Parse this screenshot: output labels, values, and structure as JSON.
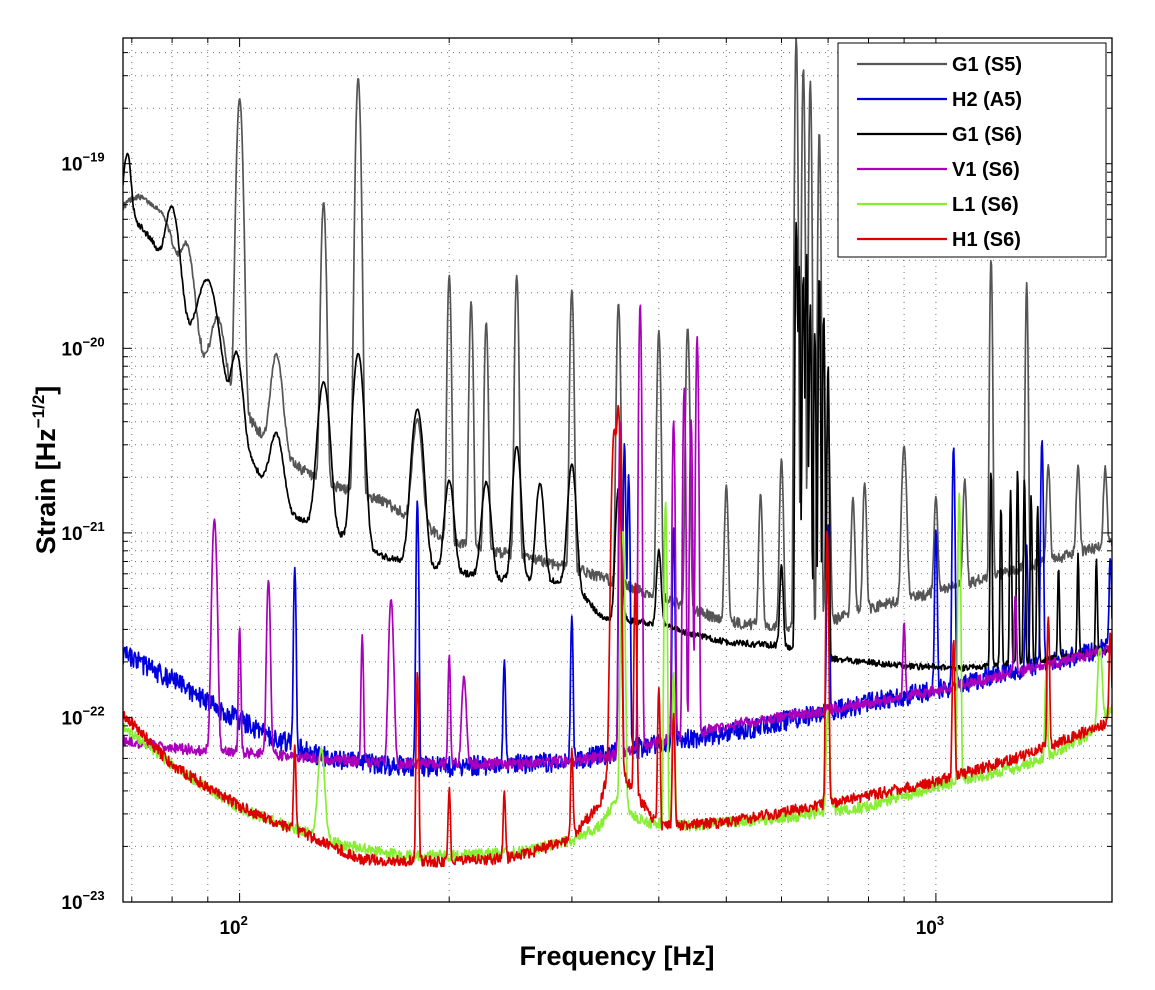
{
  "chart_data": {
    "type": "line",
    "title": "",
    "xlabel": "Frequency [Hz]",
    "ylabel": "Strain [Hz",
    "ylabel_exponent": "−1/2",
    "ylabel_suffix": "]",
    "xscale": "log",
    "yscale": "log",
    "xlim": [
      68,
      1790
    ],
    "ylim": [
      1e-23,
      4.8e-19
    ],
    "grid": true,
    "legend_position": "top-right",
    "x_ticks": [
      {
        "value": 100,
        "base": "10",
        "exp": "2"
      },
      {
        "value": 1000,
        "base": "10",
        "exp": "3"
      }
    ],
    "y_ticks": [
      {
        "value": 1e-23,
        "base": "10",
        "exp": "−23"
      },
      {
        "value": 1e-22,
        "base": "10",
        "exp": "−22"
      },
      {
        "value": 1e-21,
        "base": "10",
        "exp": "−21"
      },
      {
        "value": 1e-20,
        "base": "10",
        "exp": "−20"
      },
      {
        "value": 1e-19,
        "base": "10",
        "exp": "−19"
      }
    ],
    "series": [
      {
        "name": "G1 (S5)",
        "color": "#555555",
        "base": [
          [
            68,
            4.2e-20
          ],
          [
            75,
            2.6e-20
          ],
          [
            85,
            1.2e-20
          ],
          [
            92,
            6.5e-21
          ],
          [
            100,
            5e-21
          ],
          [
            110,
            3e-21
          ],
          [
            130,
            1.9e-21
          ],
          [
            160,
            1.5e-21
          ],
          [
            200,
            9e-22
          ],
          [
            300,
            6.5e-22
          ],
          [
            400,
            4.5e-22
          ],
          [
            500,
            3.3e-22
          ],
          [
            600,
            3.1e-22
          ],
          [
            700,
            3.3e-22
          ],
          [
            800,
            3.9e-22
          ],
          [
            1000,
            4.8e-22
          ],
          [
            1300,
            6.3e-22
          ],
          [
            1790,
            8.8e-22
          ]
        ],
        "peaks": [
          [
            72,
            3.3e-20,
            0.03
          ],
          [
            78,
            2.2e-20,
            0.02
          ],
          [
            84,
            2.2e-20,
            0.012
          ],
          [
            93,
            8.5e-21,
            0.012
          ],
          [
            100,
            2.2e-19,
            0.005
          ],
          [
            113,
            6.5e-21,
            0.01
          ],
          [
            132,
            6e-20,
            0.004
          ],
          [
            148,
            2.9e-19,
            0.004
          ],
          [
            180,
            3e-21,
            0.008
          ],
          [
            200,
            2.4e-20,
            0.003
          ],
          [
            215,
            1.7e-20,
            0.003
          ],
          [
            226,
            1.3e-20,
            0.003
          ],
          [
            250,
            2.4e-20,
            0.003
          ],
          [
            300,
            2e-20,
            0.003
          ],
          [
            350,
            1.7e-20,
            0.003
          ],
          [
            400,
            1.2e-20,
            0.003
          ],
          [
            440,
            1.25e-20,
            0.003
          ],
          [
            500,
            1.5e-21,
            0.003
          ],
          [
            560,
            1.3e-21,
            0.003
          ],
          [
            600,
            2.2e-21,
            0.003
          ],
          [
            630,
            4.8e-19,
            0.002
          ],
          [
            645,
            3.3e-19,
            0.002
          ],
          [
            660,
            2.8e-19,
            0.002
          ],
          [
            680,
            1.5e-19,
            0.002
          ],
          [
            700,
            3.5e-21,
            0.003
          ],
          [
            760,
            1.2e-21,
            0.003
          ],
          [
            790,
            1.5e-21,
            0.003
          ],
          [
            900,
            2.5e-21,
            0.004
          ],
          [
            1000,
            1.1e-21,
            0.003
          ],
          [
            1100,
            1.4e-21,
            0.003
          ],
          [
            1200,
            3e-20,
            0.002
          ],
          [
            1350,
            2.2e-20,
            0.002
          ],
          [
            1450,
            1.6e-21,
            0.003
          ],
          [
            1600,
            1.5e-21,
            0.003
          ],
          [
            1750,
            1.4e-21,
            0.003
          ]
        ]
      },
      {
        "name": "H2 (A5)",
        "color": "#0000dd",
        "base": [
          [
            68,
            2.2e-22
          ],
          [
            80,
            1.6e-22
          ],
          [
            90,
            1.2e-22
          ],
          [
            110,
            8e-23
          ],
          [
            130,
            6.2e-23
          ],
          [
            160,
            5.5e-23
          ],
          [
            200,
            5.4e-23
          ],
          [
            300,
            5.8e-23
          ],
          [
            400,
            7.2e-23
          ],
          [
            500,
            8.2e-23
          ],
          [
            600,
            9.5e-23
          ],
          [
            800,
            1.2e-22
          ],
          [
            1000,
            1.4e-22
          ],
          [
            1300,
            1.8e-22
          ],
          [
            1790,
            2.4e-22
          ]
        ],
        "peaks": [
          [
            120,
            5.8e-22,
            0.002
          ],
          [
            180,
            1.45e-21,
            0.002
          ],
          [
            240,
            1.5e-22,
            0.002
          ],
          [
            300,
            3e-22,
            0.002
          ],
          [
            352,
            2.3e-21,
            0.002
          ],
          [
            357,
            3e-21,
            0.002
          ],
          [
            362,
            2e-21,
            0.002
          ],
          [
            420,
            1e-21,
            0.002
          ],
          [
            700,
            1e-21,
            0.002
          ],
          [
            1000,
            9e-22,
            0.002
          ],
          [
            1060,
            2.8e-21,
            0.002
          ],
          [
            1350,
            6.5e-22,
            0.002
          ],
          [
            1420,
            3e-21,
            0.002
          ],
          [
            1780,
            5e-22,
            0.002
          ]
        ]
      },
      {
        "name": "G1 (S6)",
        "color": "#000000",
        "base": [
          [
            68,
            6e-20
          ],
          [
            75,
            3.8e-20
          ],
          [
            85,
            1.1e-20
          ],
          [
            95,
            4.5e-21
          ],
          [
            105,
            2.3e-21
          ],
          [
            115,
            1.3e-21
          ],
          [
            130,
            1.1e-21
          ],
          [
            160,
            7.5e-22
          ],
          [
            200,
            6.2e-22
          ],
          [
            250,
            5.5e-22
          ],
          [
            300,
            5.5e-22
          ],
          [
            330,
            3.5e-22
          ],
          [
            400,
            3.2e-22
          ],
          [
            450,
            2.8e-22
          ],
          [
            500,
            2.55e-22
          ],
          [
            600,
            2.45e-22
          ],
          [
            700,
            2.1e-22
          ],
          [
            900,
            1.9e-22
          ],
          [
            1100,
            1.85e-22
          ],
          [
            1400,
            2.05e-22
          ],
          [
            1790,
            2.3e-22
          ]
        ],
        "peaks": [
          [
            69,
            5.8e-20,
            0.006
          ],
          [
            80,
            3.8e-20,
            0.012
          ],
          [
            90,
            1.65e-20,
            0.018
          ],
          [
            99,
            6e-21,
            0.01
          ],
          [
            113,
            2e-21,
            0.012
          ],
          [
            132,
            5.5e-21,
            0.01
          ],
          [
            148,
            8.5e-21,
            0.009
          ],
          [
            180,
            4e-21,
            0.01
          ],
          [
            200,
            1.3e-21,
            0.008
          ],
          [
            226,
            1.3e-21,
            0.008
          ],
          [
            250,
            2.4e-21,
            0.007
          ],
          [
            270,
            1.3e-21,
            0.007
          ],
          [
            300,
            1.8e-21,
            0.007
          ],
          [
            350,
            1.4e-21,
            0.005
          ],
          [
            400,
            4.8e-22,
            0.004
          ],
          [
            600,
            4.2e-22,
            0.003
          ],
          [
            630,
            4.8e-20,
            0.0015
          ],
          [
            636,
            2.8e-20,
            0.0015
          ],
          [
            645,
            2.5e-20,
            0.0015
          ],
          [
            652,
            3.2e-20,
            0.0015
          ],
          [
            660,
            1.7e-20,
            0.0015
          ],
          [
            670,
            1.2e-20,
            0.0015
          ],
          [
            680,
            2.5e-20,
            0.0015
          ],
          [
            690,
            1.5e-20,
            0.0015
          ],
          [
            700,
            8e-21,
            0.0015
          ],
          [
            1200,
            2e-21,
            0.0015
          ],
          [
            1240,
            1.2e-21,
            0.0015
          ],
          [
            1280,
            1.5e-21,
            0.0015
          ],
          [
            1310,
            2e-21,
            0.0015
          ],
          [
            1340,
            1.8e-21,
            0.0015
          ],
          [
            1370,
            1.4e-21,
            0.0015
          ],
          [
            1400,
            1.2e-21,
            0.0015
          ],
          [
            1500,
            4.5e-22,
            0.0015
          ],
          [
            1600,
            5.5e-22,
            0.0015
          ],
          [
            1700,
            5e-22,
            0.0015
          ]
        ]
      },
      {
        "name": "V1 (S6)",
        "color": "#aa00bb",
        "base": [
          [
            68,
            7.5e-23
          ],
          [
            80,
            6.8e-23
          ],
          [
            100,
            6.5e-23
          ],
          [
            130,
            6e-23
          ],
          [
            170,
            5.6e-23
          ],
          [
            250,
            5.6e-23
          ],
          [
            300,
            5.8e-23
          ],
          [
            350,
            6.3e-23
          ],
          [
            400,
            7.4e-23
          ],
          [
            500,
            9e-23
          ],
          [
            700,
            1.1e-22
          ],
          [
            1000,
            1.4e-22
          ],
          [
            1300,
            1.75e-22
          ],
          [
            1790,
            2.35e-22
          ]
        ],
        "peaks": [
          [
            92,
            1.12e-21,
            0.004
          ],
          [
            100,
            2.4e-22,
            0.002
          ],
          [
            110,
            4.9e-22,
            0.003
          ],
          [
            150,
            2.2e-22,
            0.002
          ],
          [
            165,
            3.8e-22,
            0.004
          ],
          [
            200,
            1.6e-22,
            0.002
          ],
          [
            210,
            1.1e-22,
            0.004
          ],
          [
            352,
            4e-21,
            0.002
          ],
          [
            376,
            1.75e-20,
            0.002
          ],
          [
            420,
            4e-21,
            0.002
          ],
          [
            435,
            6e-21,
            0.002
          ],
          [
            445,
            4e-21,
            0.002
          ],
          [
            454,
            1.15e-20,
            0.002
          ],
          [
            900,
            2e-22,
            0.002
          ],
          [
            1300,
            3e-22,
            0.002
          ]
        ]
      },
      {
        "name": "L1 (S6)",
        "color": "#88ee33",
        "base": [
          [
            68,
            9e-23
          ],
          [
            80,
            5.5e-23
          ],
          [
            100,
            3.2e-23
          ],
          [
            120,
            2.5e-23
          ],
          [
            140,
            2.05e-23
          ],
          [
            170,
            1.8e-23
          ],
          [
            200,
            1.78e-23
          ],
          [
            250,
            1.85e-23
          ],
          [
            300,
            2.15e-23
          ],
          [
            330,
            2.6e-23
          ],
          [
            345,
            3.5e-23
          ],
          [
            360,
            3.2e-23
          ],
          [
            380,
            2.7e-23
          ],
          [
            450,
            2.6e-23
          ],
          [
            600,
            2.85e-23
          ],
          [
            800,
            3.3e-23
          ],
          [
            1000,
            4.2e-23
          ],
          [
            1300,
            5.3e-23
          ],
          [
            1500,
            6.5e-23
          ],
          [
            1700,
            8.5e-23
          ],
          [
            1790,
            1.15e-22
          ]
        ],
        "peaks": [
          [
            131,
            4.5e-23,
            0.006
          ],
          [
            355,
            1e-21,
            0.003
          ],
          [
            409,
            1.45e-21,
            0.002
          ],
          [
            420,
            1.5e-22,
            0.002
          ],
          [
            700,
            8e-23,
            0.003
          ],
          [
            1080,
            1.6e-21,
            0.002
          ],
          [
            1440,
            1.2e-22,
            0.002
          ],
          [
            1720,
            1.5e-22,
            0.004
          ]
        ]
      },
      {
        "name": "H1 (S6)",
        "color": "#dd0000",
        "base": [
          [
            68,
            1.05e-22
          ],
          [
            80,
            5.5e-23
          ],
          [
            100,
            3.3e-23
          ],
          [
            110,
            2.8e-23
          ],
          [
            125,
            2.3e-23
          ],
          [
            150,
            1.7e-23
          ],
          [
            200,
            1.65e-23
          ],
          [
            250,
            1.75e-23
          ],
          [
            300,
            2.2e-23
          ],
          [
            330,
            3.5e-23
          ],
          [
            345,
            7e-23
          ],
          [
            360,
            4.5e-23
          ],
          [
            400,
            2.55e-23
          ],
          [
            500,
            2.7e-23
          ],
          [
            700,
            3.4e-23
          ],
          [
            1000,
            4.5e-23
          ],
          [
            1300,
            6e-23
          ],
          [
            1790,
            9.5e-23
          ]
        ],
        "peaks": [
          [
            120,
            4.5e-23,
            0.002
          ],
          [
            180,
            1.6e-22,
            0.002
          ],
          [
            200,
            2.5e-23,
            0.002
          ],
          [
            240,
            2.3e-23,
            0.002
          ],
          [
            300,
            4.5e-23,
            0.002
          ],
          [
            345,
            3.5e-21,
            0.004
          ],
          [
            350,
            4.5e-21,
            0.003
          ],
          [
            370,
            5e-22,
            0.002
          ],
          [
            400,
            1.2e-22,
            0.002
          ],
          [
            420,
            8e-23,
            0.002
          ],
          [
            698,
            1e-21,
            0.002
          ],
          [
            1060,
            2.2e-22,
            0.002
          ],
          [
            1450,
            2.8e-22,
            0.002
          ],
          [
            1780,
            2e-22,
            0.002
          ]
        ]
      }
    ]
  }
}
